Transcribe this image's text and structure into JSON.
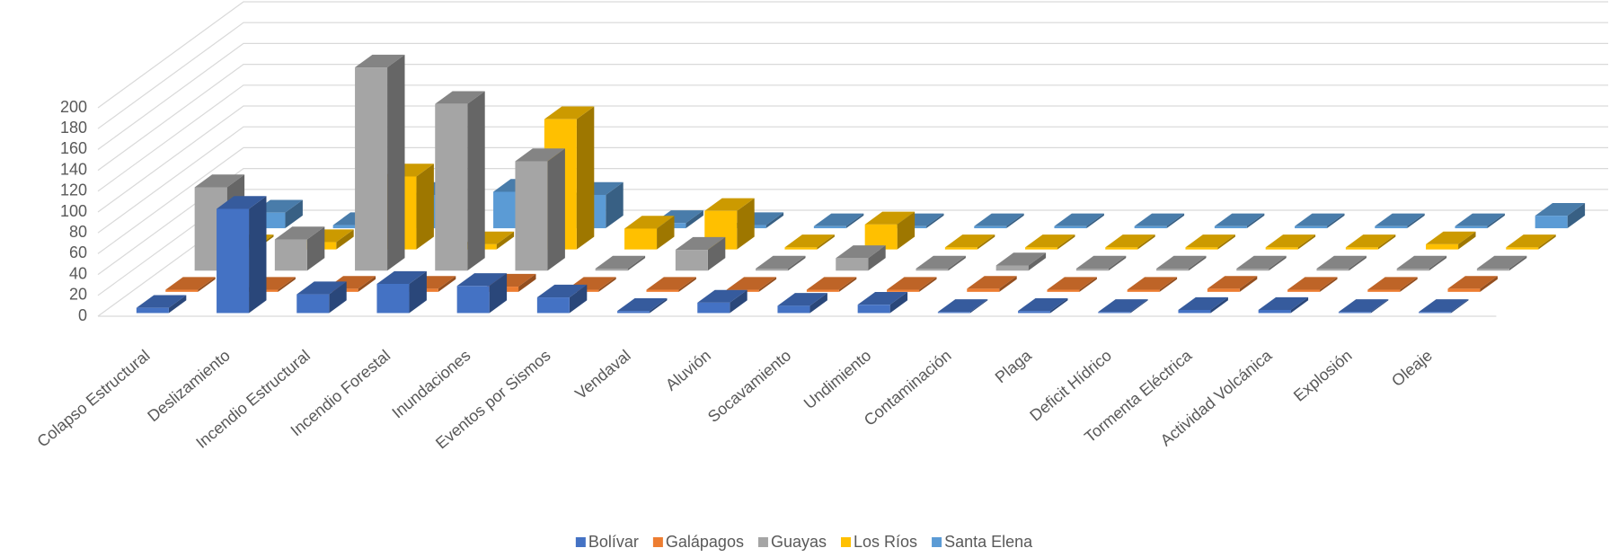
{
  "chart_data": {
    "type": "bar3d",
    "categories": [
      "Colapso Estructural",
      "Deslizamiento",
      "Incendio Estructural",
      "Incendio Forestal",
      "Inundaciones",
      "Eventos por Sismos",
      "Vendaval",
      "Aluvión",
      "Socavamiento",
      "Undimiento",
      "Contaminación",
      "Plaga",
      "Deficit Hídrico",
      "Tormenta Eléctrica",
      "Actividad Volcánica",
      "Explosión",
      "Oleaje"
    ],
    "series": [
      {
        "name": "Bolívar",
        "color": "#4472c4",
        "values": [
          5,
          100,
          18,
          28,
          26,
          15,
          2,
          10,
          7,
          8,
          1,
          2,
          1,
          3,
          3,
          1,
          1
        ]
      },
      {
        "name": "Galápagos",
        "color": "#ed7d31",
        "values": [
          2,
          2,
          3,
          3,
          5,
          2,
          2,
          2,
          2,
          2,
          3,
          2,
          2,
          3,
          2,
          2,
          3
        ]
      },
      {
        "name": "Guayas",
        "color": "#a5a5a5",
        "values": [
          80,
          30,
          195,
          160,
          105,
          2,
          20,
          2,
          12,
          2,
          5,
          2,
          2,
          2,
          2,
          2,
          2
        ]
      },
      {
        "name": "Los Ríos",
        "color": "#ffc000",
        "values": [
          2,
          7,
          70,
          5,
          125,
          20,
          37,
          2,
          24,
          2,
          2,
          2,
          2,
          2,
          2,
          5,
          2
        ]
      },
      {
        "name": "Santa Elena",
        "color": "#5b9bd5",
        "values": [
          15,
          3,
          32,
          35,
          32,
          5,
          3,
          2,
          2,
          2,
          2,
          2,
          2,
          2,
          2,
          2,
          12
        ]
      }
    ],
    "ylim": [
      0,
      200
    ],
    "yticks": [
      0,
      20,
      40,
      60,
      80,
      100,
      120,
      140,
      160,
      180,
      200
    ],
    "grid": true,
    "legend": "bottom"
  }
}
